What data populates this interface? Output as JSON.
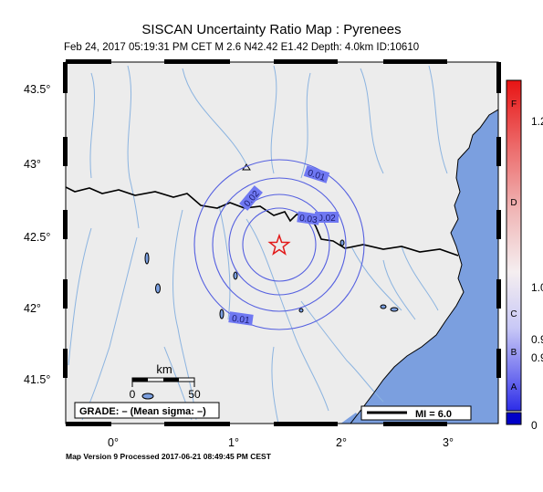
{
  "title": "SISCAN Uncertainty Ratio Map : Pyrenees",
  "subtitle": "Feb 24, 2017 05:19:31 PM CET   M 2.6   N42.42 E1.42   Depth: 4.0km   ID:10610",
  "map": {
    "latitude_labels": [
      "43.5°",
      "43°",
      "42.5°",
      "42°",
      "41.5°"
    ],
    "longitude_labels": [
      "0°",
      "1°",
      "2°",
      "3°"
    ],
    "contour_labels": [
      "0.01",
      "0.02",
      "0.02",
      "0.03",
      "0.01"
    ],
    "epicenter_marker": "star-icon",
    "scale_bar": {
      "unit": "km",
      "min": "0",
      "max": "50"
    },
    "grade_box": "GRADE: – (Mean sigma: –)",
    "mi_legend": "MI = 6.0",
    "colors": {
      "land": "#ececec",
      "sea": "#7b9fdf",
      "rivers": "#8cb4e0",
      "contours": "#5560e0",
      "star": "#e21a1a"
    }
  },
  "colorbar": {
    "letters": [
      "F",
      "D",
      "C",
      "B",
      "A"
    ],
    "values": [
      "1.2",
      "1.0",
      "0.9",
      "0.9",
      "0"
    ]
  },
  "footer": "Map Version 9 Processed 2017-06-21 08:49:45 PM CEST"
}
